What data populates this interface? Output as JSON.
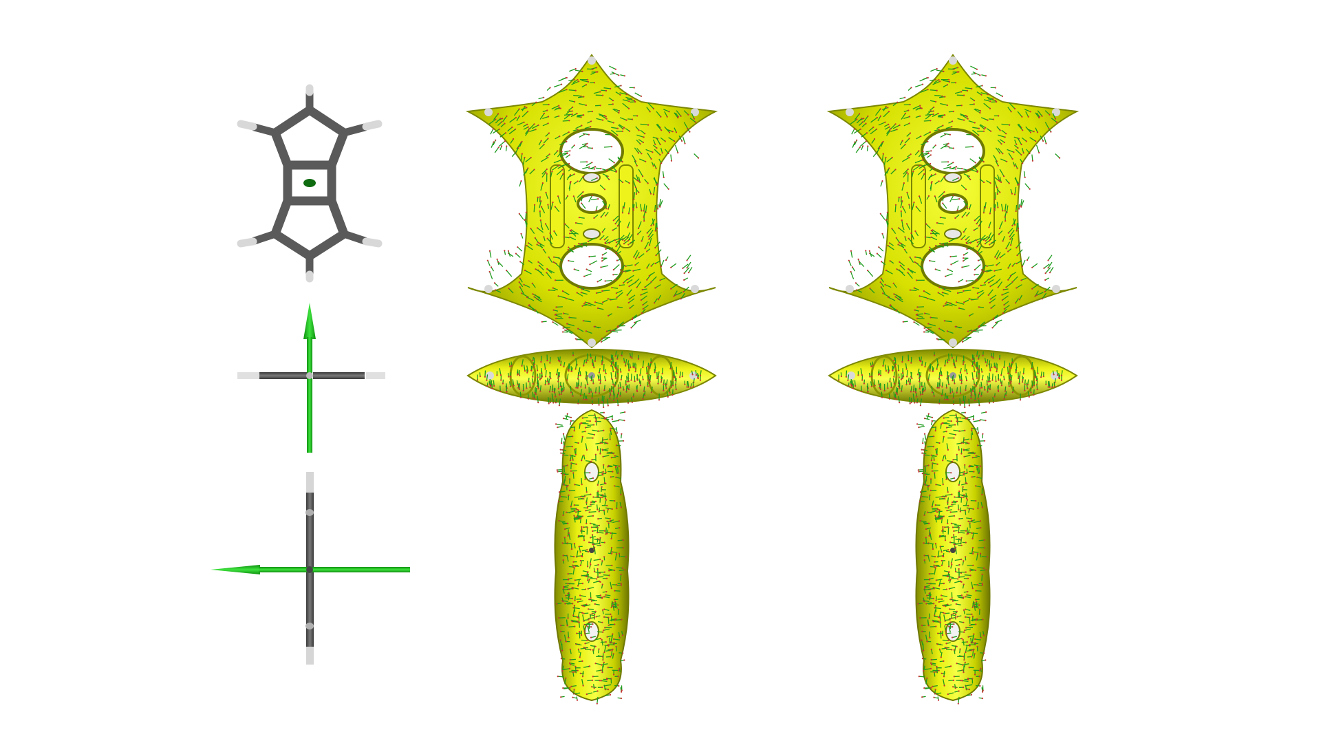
{
  "figure": {
    "description_panels": [
      "molecule-top-view",
      "molecule-side-view",
      "molecule-end-view",
      "current-density-isosurface-a",
      "current-density-isosurface-b"
    ]
  },
  "colors": {
    "background": "#ffffff",
    "carbon": "#555555",
    "hydrogen": "#dcdcdc",
    "axis_arrow": "#22c322",
    "ring_center": "#0f6b0f",
    "iso_fill": "#d9e000",
    "iso_dark": "#8f9a00",
    "iso_highlight": "#fbff4a",
    "vector_green": "#1d9b1d",
    "vector_red": "#c83232"
  },
  "icons": {
    "molecule": "ball-and-stick-model",
    "arrow": "magnetic-field-arrow"
  }
}
